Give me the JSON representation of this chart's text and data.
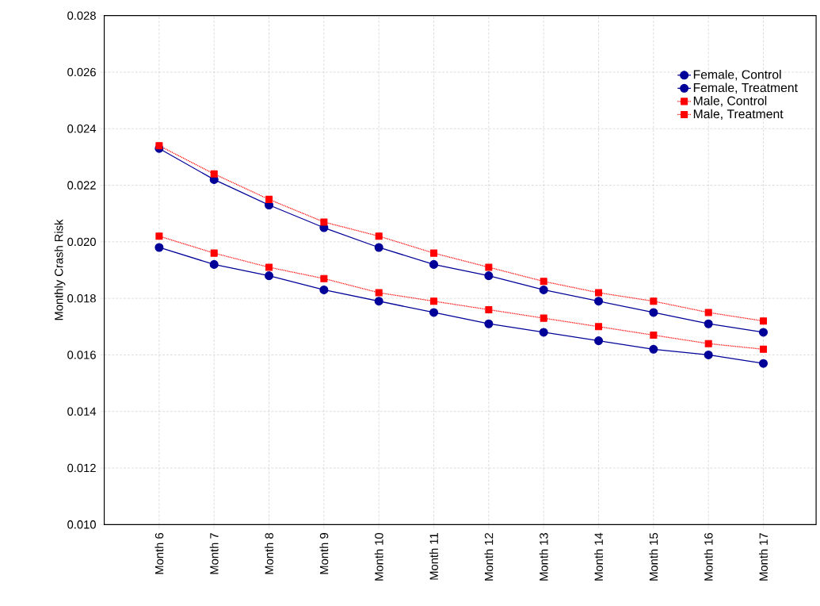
{
  "chart_data": {
    "type": "line",
    "ylabel": "Monthly Crash Risk",
    "categories": [
      "Month 6",
      "Month 7",
      "Month 8",
      "Month 9",
      "Month 10",
      "Month 11",
      "Month 12",
      "Month 13",
      "Month 14",
      "Month 15",
      "Month 16",
      "Month 17"
    ],
    "series": [
      {
        "name": "Female, Control",
        "color": "#000099",
        "marker": "circle",
        "line_style": "solid",
        "values": [
          0.0233,
          0.0222,
          0.0213,
          0.0205,
          0.0198,
          0.0192,
          0.0188,
          0.0183,
          0.0179,
          0.0175,
          0.0171,
          0.0168
        ]
      },
      {
        "name": "Female, Treatment",
        "color": "#000099",
        "marker": "circle",
        "line_style": "solid",
        "values": [
          0.0198,
          0.0192,
          0.0188,
          0.0183,
          0.0179,
          0.0175,
          0.0171,
          0.0168,
          0.0165,
          0.0162,
          0.016,
          0.0157
        ]
      },
      {
        "name": "Male, Control",
        "color": "#ff0000",
        "marker": "square",
        "line_style": "dotted",
        "values": [
          0.0234,
          0.0224,
          0.0215,
          0.0207,
          0.0202,
          0.0196,
          0.0191,
          0.0186,
          0.0182,
          0.0179,
          0.0175,
          0.0172
        ]
      },
      {
        "name": "Male, Treatment",
        "color": "#ff0000",
        "marker": "square",
        "line_style": "dotted",
        "values": [
          0.0202,
          0.0196,
          0.0191,
          0.0187,
          0.0182,
          0.0179,
          0.0176,
          0.0173,
          0.017,
          0.0167,
          0.0164,
          0.0162
        ]
      }
    ],
    "ylim": [
      0.01,
      0.028
    ],
    "yticks": [
      {
        "value": 0.01,
        "label": "0.010"
      },
      {
        "value": 0.012,
        "label": "0.012"
      },
      {
        "value": 0.014,
        "label": "0.014"
      },
      {
        "value": 0.016,
        "label": "0.016"
      },
      {
        "value": 0.018,
        "label": "0.018"
      },
      {
        "value": 0.02,
        "label": "0.020"
      },
      {
        "value": 0.022,
        "label": "0.022"
      },
      {
        "value": 0.024,
        "label": "0.024"
      },
      {
        "value": 0.026,
        "label": "0.026"
      },
      {
        "value": 0.028,
        "label": "0.028"
      }
    ],
    "grid": true,
    "legend": "top right"
  }
}
